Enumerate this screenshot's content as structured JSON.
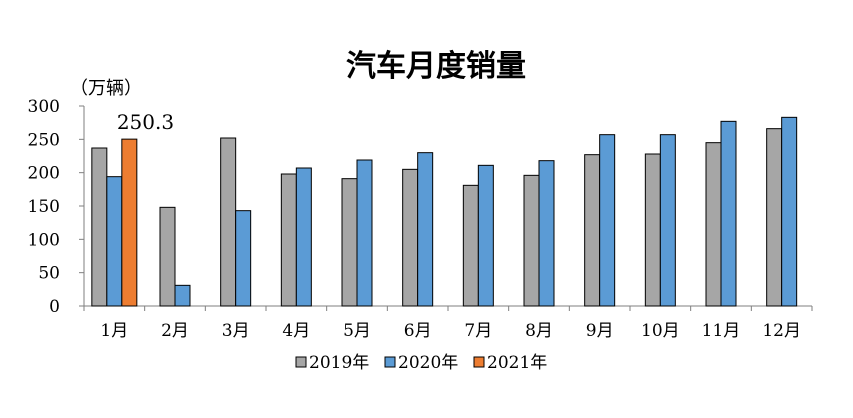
{
  "chart_data": {
    "type": "bar",
    "title": "汽车月度销量",
    "unit": "（万辆）",
    "ylim": [
      0,
      300
    ],
    "yticks": [
      "0",
      "50",
      "100",
      "150",
      "200",
      "250",
      "300"
    ],
    "categories": [
      "1月",
      "2月",
      "3月",
      "4月",
      "5月",
      "6月",
      "7月",
      "8月",
      "9月",
      "10月",
      "11月",
      "12月"
    ],
    "series": [
      {
        "name": "2019年",
        "color": "#a6a6a6",
        "values": [
          237,
          148,
          252,
          198,
          191,
          205,
          181,
          196,
          227,
          228,
          245,
          266
        ]
      },
      {
        "name": "2020年",
        "color": "#5b9bd5",
        "values": [
          194,
          31,
          143,
          207,
          219,
          230,
          211,
          218,
          257,
          257,
          277,
          283
        ]
      },
      {
        "name": "2021年",
        "color": "#ed7d31",
        "values": [
          250.3,
          null,
          null,
          null,
          null,
          null,
          null,
          null,
          null,
          null,
          null,
          null
        ]
      }
    ],
    "data_labels": [
      {
        "series": 2,
        "index": 0,
        "text": "250.3"
      }
    ],
    "grid": false,
    "legend_position": "bottom"
  }
}
